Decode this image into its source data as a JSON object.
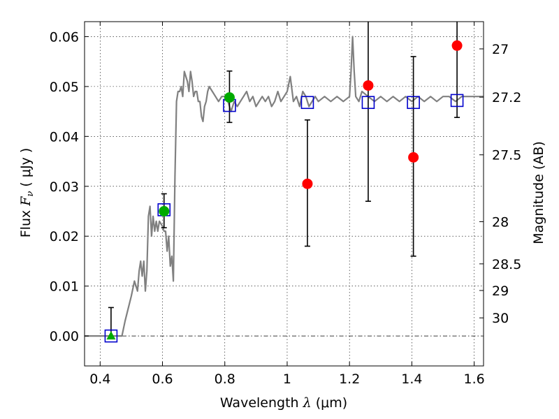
{
  "chart_data": {
    "type": "scatter",
    "title": "",
    "xlabel_text": "Wavelength",
    "xlabel_symbol": "λ",
    "xlabel_unit": "(μm)",
    "ylabel_text": "Flux",
    "ylabel_symbol": "F",
    "ylabel_subscript": "ν",
    "ylabel_unit": "( μJy )",
    "y2label": "Magnitude (AB)",
    "xlim": [
      0.35,
      1.63
    ],
    "ylim": [
      -0.006,
      0.063
    ],
    "grid": true,
    "x_ticks": [
      {
        "value": 0.4,
        "label": "0.4"
      },
      {
        "value": 0.6,
        "label": "0.6"
      },
      {
        "value": 0.8,
        "label": "0.8"
      },
      {
        "value": 1.0,
        "label": "1"
      },
      {
        "value": 1.2,
        "label": "1.2"
      },
      {
        "value": 1.4,
        "label": "1.4"
      },
      {
        "value": 1.6,
        "label": "1.6"
      }
    ],
    "y_ticks": [
      {
        "value": 0.0,
        "label": "0.00"
      },
      {
        "value": 0.01,
        "label": "0.01"
      },
      {
        "value": 0.02,
        "label": "0.02"
      },
      {
        "value": 0.03,
        "label": "0.03"
      },
      {
        "value": 0.04,
        "label": "0.04"
      },
      {
        "value": 0.05,
        "label": "0.05"
      },
      {
        "value": 0.06,
        "label": "0.06"
      }
    ],
    "mag_ticks": [
      {
        "value": 27.0,
        "label": "27"
      },
      {
        "value": 27.2,
        "label": "27.2"
      },
      {
        "value": 27.5,
        "label": "27.5"
      },
      {
        "value": 28.0,
        "label": "28"
      },
      {
        "value": 28.5,
        "label": "28.5"
      },
      {
        "value": 29.0,
        "label": "29"
      },
      {
        "value": 30.0,
        "label": "30"
      }
    ],
    "mag_zero_point": 23.9,
    "colors": {
      "sed": "#808080",
      "model_box": "#0000cc",
      "observed": "#ff0000",
      "detected": "#00aa00",
      "errorbar": "#000000"
    },
    "series": [
      {
        "kind": "sed_template",
        "x": [
          0.35,
          0.4,
          0.45,
          0.47,
          0.48,
          0.5,
          0.51,
          0.52,
          0.525,
          0.53,
          0.535,
          0.54,
          0.545,
          0.55,
          0.555,
          0.56,
          0.565,
          0.57,
          0.575,
          0.58,
          0.585,
          0.59,
          0.6,
          0.605,
          0.61,
          0.615,
          0.62,
          0.625,
          0.63,
          0.635,
          0.64,
          0.645,
          0.65,
          0.655,
          0.66,
          0.665,
          0.67,
          0.675,
          0.68,
          0.685,
          0.69,
          0.695,
          0.7,
          0.705,
          0.71,
          0.715,
          0.72,
          0.725,
          0.73,
          0.735,
          0.74,
          0.745,
          0.75,
          0.76,
          0.77,
          0.78,
          0.79,
          0.8,
          0.81,
          0.82,
          0.83,
          0.84,
          0.85,
          0.86,
          0.87,
          0.88,
          0.89,
          0.9,
          0.91,
          0.92,
          0.93,
          0.94,
          0.95,
          0.96,
          0.97,
          0.98,
          0.99,
          1.0,
          1.01,
          1.02,
          1.03,
          1.04,
          1.05,
          1.06,
          1.07,
          1.08,
          1.09,
          1.1,
          1.12,
          1.14,
          1.16,
          1.18,
          1.2,
          1.205,
          1.21,
          1.215,
          1.22,
          1.23,
          1.24,
          1.26,
          1.28,
          1.3,
          1.32,
          1.34,
          1.36,
          1.38,
          1.4,
          1.42,
          1.44,
          1.46,
          1.48,
          1.5,
          1.52,
          1.54,
          1.56,
          1.58,
          1.6,
          1.63
        ],
        "y": [
          0.0,
          0.0,
          0.0,
          0.0,
          0.003,
          0.008,
          0.011,
          0.009,
          0.013,
          0.015,
          0.012,
          0.015,
          0.009,
          0.013,
          0.024,
          0.026,
          0.02,
          0.024,
          0.021,
          0.023,
          0.021,
          0.023,
          0.022,
          0.021,
          0.021,
          0.017,
          0.02,
          0.014,
          0.016,
          0.011,
          0.032,
          0.047,
          0.049,
          0.049,
          0.05,
          0.048,
          0.053,
          0.052,
          0.051,
          0.049,
          0.053,
          0.051,
          0.048,
          0.049,
          0.049,
          0.047,
          0.047,
          0.044,
          0.043,
          0.046,
          0.047,
          0.049,
          0.05,
          0.049,
          0.048,
          0.047,
          0.048,
          0.048,
          0.047,
          0.045,
          0.047,
          0.046,
          0.047,
          0.048,
          0.049,
          0.047,
          0.048,
          0.046,
          0.047,
          0.048,
          0.047,
          0.048,
          0.046,
          0.047,
          0.049,
          0.047,
          0.048,
          0.049,
          0.052,
          0.047,
          0.048,
          0.046,
          0.049,
          0.048,
          0.046,
          0.047,
          0.048,
          0.047,
          0.048,
          0.047,
          0.048,
          0.047,
          0.048,
          0.053,
          0.06,
          0.053,
          0.048,
          0.047,
          0.049,
          0.048,
          0.047,
          0.048,
          0.047,
          0.048,
          0.047,
          0.048,
          0.047,
          0.048,
          0.047,
          0.048,
          0.047,
          0.048,
          0.048,
          0.047,
          0.048,
          0.048,
          0.048,
          0.048
        ]
      },
      {
        "kind": "model_fluxes",
        "marker": "open-square",
        "x": [
          0.435,
          0.605,
          0.815,
          1.065,
          1.26,
          1.405,
          1.545
        ],
        "y": [
          0.0,
          0.0253,
          0.0462,
          0.0468,
          0.0468,
          0.0468,
          0.0472
        ]
      },
      {
        "kind": "observed_fluxes_nondetections",
        "marker": "filled-circle",
        "x": [
          1.065,
          1.26,
          1.405,
          1.545
        ],
        "y": [
          0.0305,
          0.0502,
          0.0358,
          0.0582
        ],
        "yerr_low": [
          0.0125,
          0.0232,
          0.0198,
          0.0144
        ],
        "yerr_high": [
          0.0128,
          0.013,
          0.0202,
          0.008
        ]
      },
      {
        "kind": "observed_fluxes_detections",
        "marker": "filled-circle",
        "x": [
          0.605,
          0.815
        ],
        "y": [
          0.025,
          0.0478
        ],
        "yerr_low": [
          0.0033,
          0.005
        ],
        "yerr_high": [
          0.0035,
          0.0053
        ]
      },
      {
        "kind": "observed_flux_triangle",
        "marker": "filled-triangle",
        "x": [
          0.435
        ],
        "y": [
          0.0
        ],
        "yerr_low": [
          0.0
        ],
        "yerr_high": [
          0.0057
        ]
      }
    ]
  }
}
